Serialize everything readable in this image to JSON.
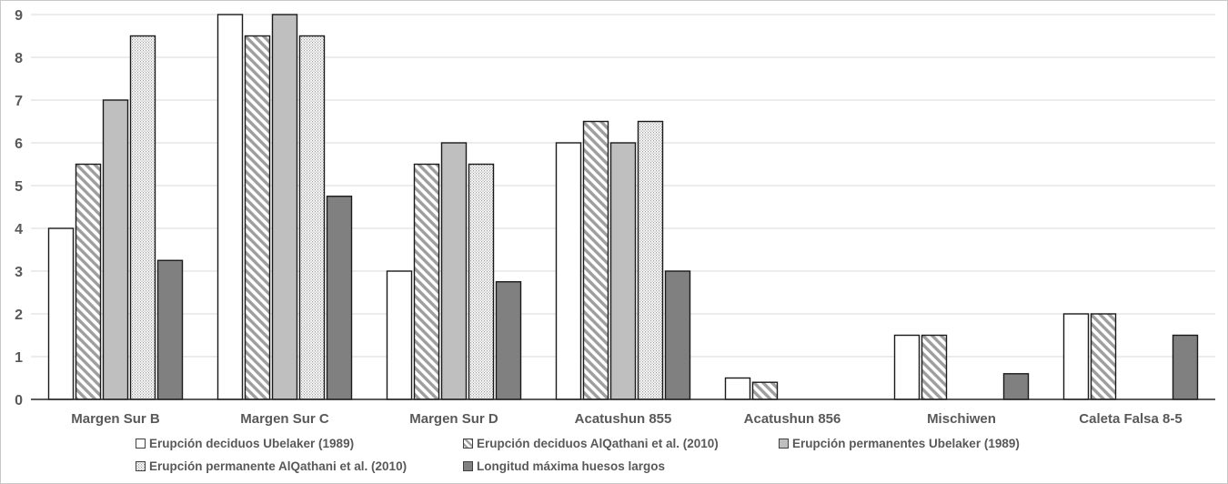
{
  "chart_data": {
    "type": "bar",
    "title": "",
    "xlabel": "",
    "ylabel": "",
    "categories": [
      "Margen Sur B",
      "Margen Sur C",
      "Margen Sur D",
      "Acatushun 855",
      "Acatushun 856",
      "Mischiwen",
      "Caleta Falsa 8-5"
    ],
    "series": [
      {
        "name": "Erupción deciduos Ubelaker (1989)",
        "pattern": "white",
        "values": [
          4,
          9,
          3,
          6,
          0.5,
          1.5,
          2
        ]
      },
      {
        "name": "Erupción deciduos AlQathani et al. (2010)",
        "pattern": "hatch",
        "values": [
          5.5,
          8.5,
          5.5,
          6.5,
          0.4,
          1.5,
          2
        ]
      },
      {
        "name": "Erupción permanentes Ubelaker (1989)",
        "pattern": "lightgray",
        "values": [
          7,
          9,
          6,
          6,
          0,
          0,
          0
        ]
      },
      {
        "name": "Erupción permanente AlQathani et al. (2010)",
        "pattern": "dots",
        "values": [
          8.5,
          8.5,
          5.5,
          6.5,
          0,
          0,
          0
        ]
      },
      {
        "name": "Longitud máxima huesos largos",
        "pattern": "darkgray",
        "values": [
          3.25,
          4.75,
          2.75,
          3,
          0,
          0.6,
          1.5
        ]
      }
    ],
    "ylim": [
      0,
      9
    ],
    "yticks": [
      0,
      1,
      2,
      3,
      4,
      5,
      6,
      7,
      8,
      9
    ],
    "grid": true,
    "legend_position": "bottom",
    "legend_rows": [
      [
        0,
        1,
        2
      ],
      [
        3,
        4
      ]
    ],
    "colors": {
      "bar_outline": "#1a1a1a",
      "white_fill": "#ffffff",
      "light_gray": "#bfbfbf",
      "dark_gray": "#808080",
      "pattern_gray": "#9e9e9e",
      "gridline": "#d9d9d9",
      "axis_line": "#262626",
      "axis_text": "#595959"
    }
  }
}
